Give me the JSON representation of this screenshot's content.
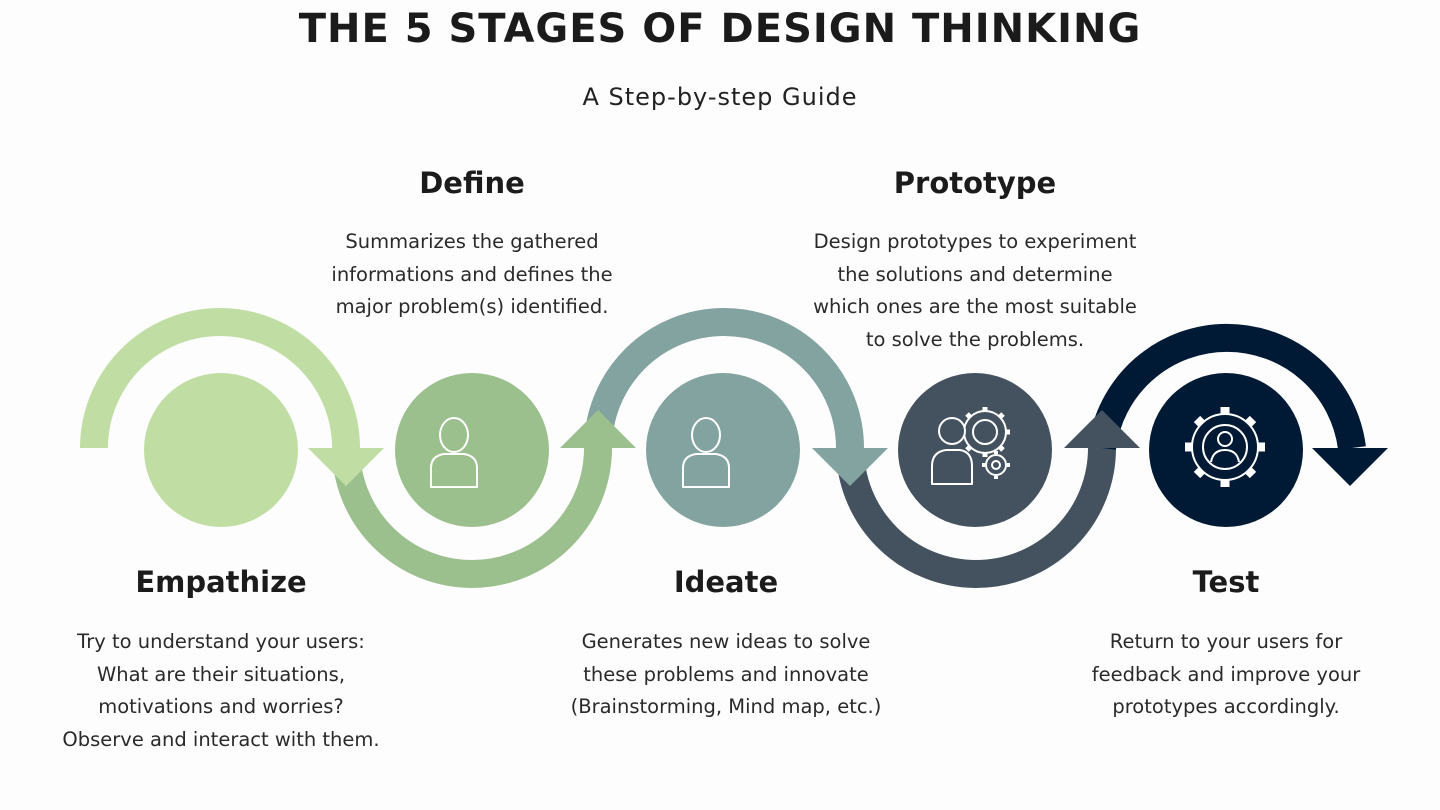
{
  "title": "THE 5 STAGES OF DESIGN THINKING",
  "subtitle": "A Step-by-step Guide",
  "colors": {
    "empathize": "#c0dea4",
    "define": "#9bc08e",
    "ideate": "#83a3a0",
    "prototype": "#44525f",
    "test": "#001a35",
    "icon_stroke": "#ffffff"
  },
  "stages": [
    {
      "name": "Empathize",
      "icon": "none",
      "description": [
        "Try to understand your users:",
        "What are their situations,",
        "motivations and worries?",
        "Observe and interact with them."
      ]
    },
    {
      "name": "Define",
      "icon": "person-icon",
      "description": [
        "Summarizes the gathered",
        "informations and defines the",
        "major problem(s) identified."
      ]
    },
    {
      "name": "Ideate",
      "icon": "person-icon",
      "description": [
        "Generates new ideas to solve",
        "these problems and innovate",
        "(Brainstorming, Mind map, etc.)"
      ]
    },
    {
      "name": "Prototype",
      "icon": "team-gears-icon",
      "description": [
        "Design prototypes to experiment",
        "the solutions and determine",
        "which ones are the most suitable",
        "to solve the problems."
      ]
    },
    {
      "name": "Test",
      "icon": "user-gear-icon",
      "description": [
        "Return to your users for",
        "feedback and improve your",
        "prototypes accordingly."
      ]
    }
  ]
}
